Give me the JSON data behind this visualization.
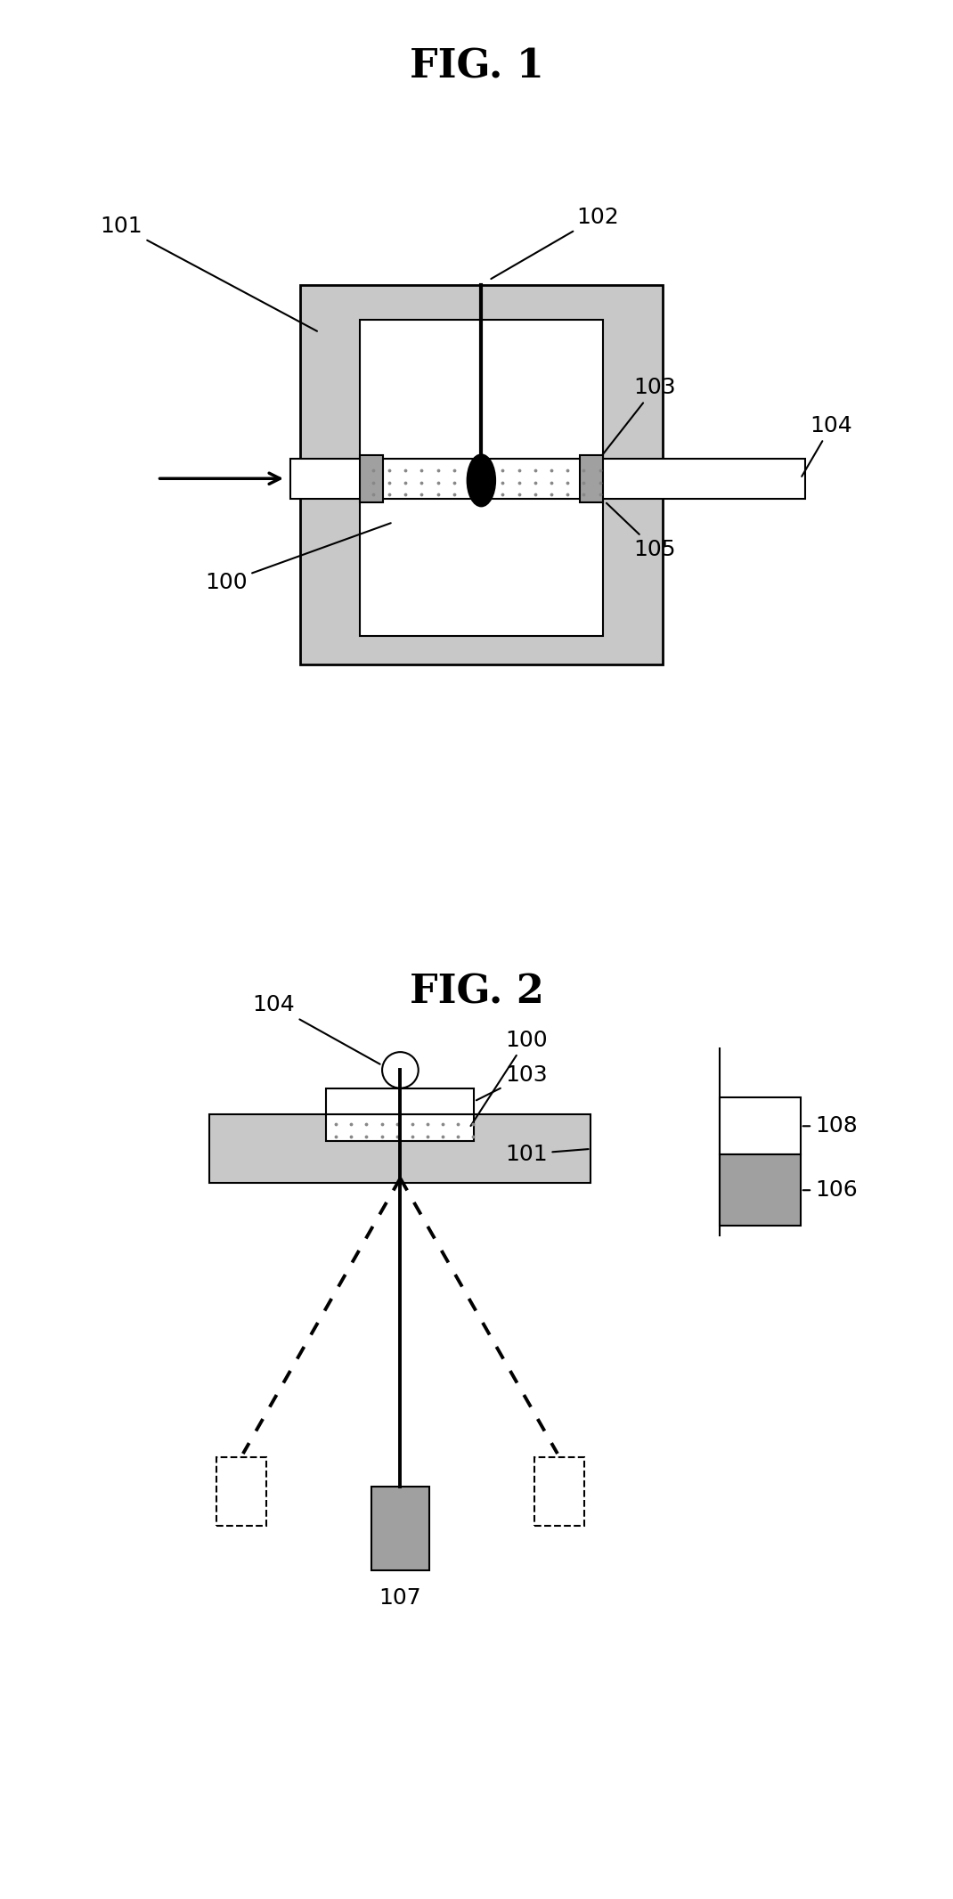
{
  "fig_title1": "FIG. 1",
  "fig_title2": "FIG. 2",
  "bg_color": "#ffffff",
  "gray_light": "#c8c8c8",
  "gray_medium": "#a0a0a0",
  "gray_dark": "#707070",
  "black": "#000000",
  "white": "#ffffff",
  "dot_color": "#888888"
}
